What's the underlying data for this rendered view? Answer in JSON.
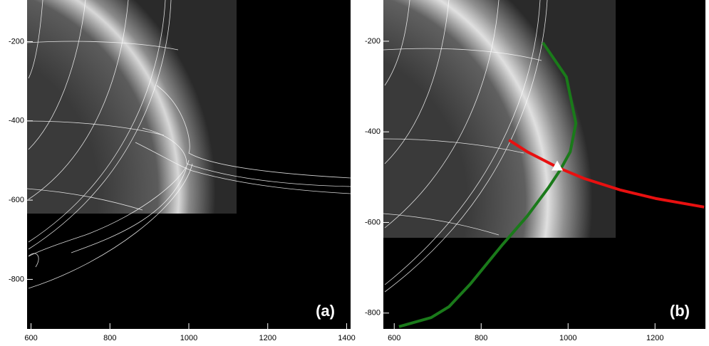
{
  "chart_data": [
    {
      "type": "image",
      "panel_label": "(a)",
      "xlim": [
        590,
        1410
      ],
      "xticks": [
        600,
        800,
        1000,
        1200,
        1400
      ],
      "ylim": [
        -925,
        -95
      ],
      "yticks": [
        -200,
        -400,
        -600,
        -800
      ]
    },
    {
      "type": "line",
      "panel_label": "(b)",
      "xlim": [
        575,
        1316
      ],
      "xticks": [
        600,
        800,
        1000,
        1200
      ],
      "ylim": [
        -835,
        -109
      ],
      "yticks": [
        -200,
        -400,
        -600,
        -800
      ],
      "series": [
        {
          "color": "#1a7a1a",
          "x": [
            942,
            996,
            1018,
            1005,
            982,
            955,
            906,
            849,
            775,
            726,
            685,
            611
          ],
          "values": [
            -203,
            -279,
            -381,
            -444,
            -484,
            -523,
            -586,
            -649,
            -736,
            -786,
            -810,
            -830
          ]
        },
        {
          "color": "#e81010",
          "x": [
            864,
            906,
            977,
            1037,
            1119,
            1201,
            1313
          ],
          "values": [
            -418,
            -444,
            -479,
            -503,
            -528,
            -547,
            -566
          ]
        },
        {
          "color": "#ffffff",
          "marker": "triangle",
          "x": [
            975
          ],
          "values": [
            -476
          ]
        }
      ]
    }
  ]
}
